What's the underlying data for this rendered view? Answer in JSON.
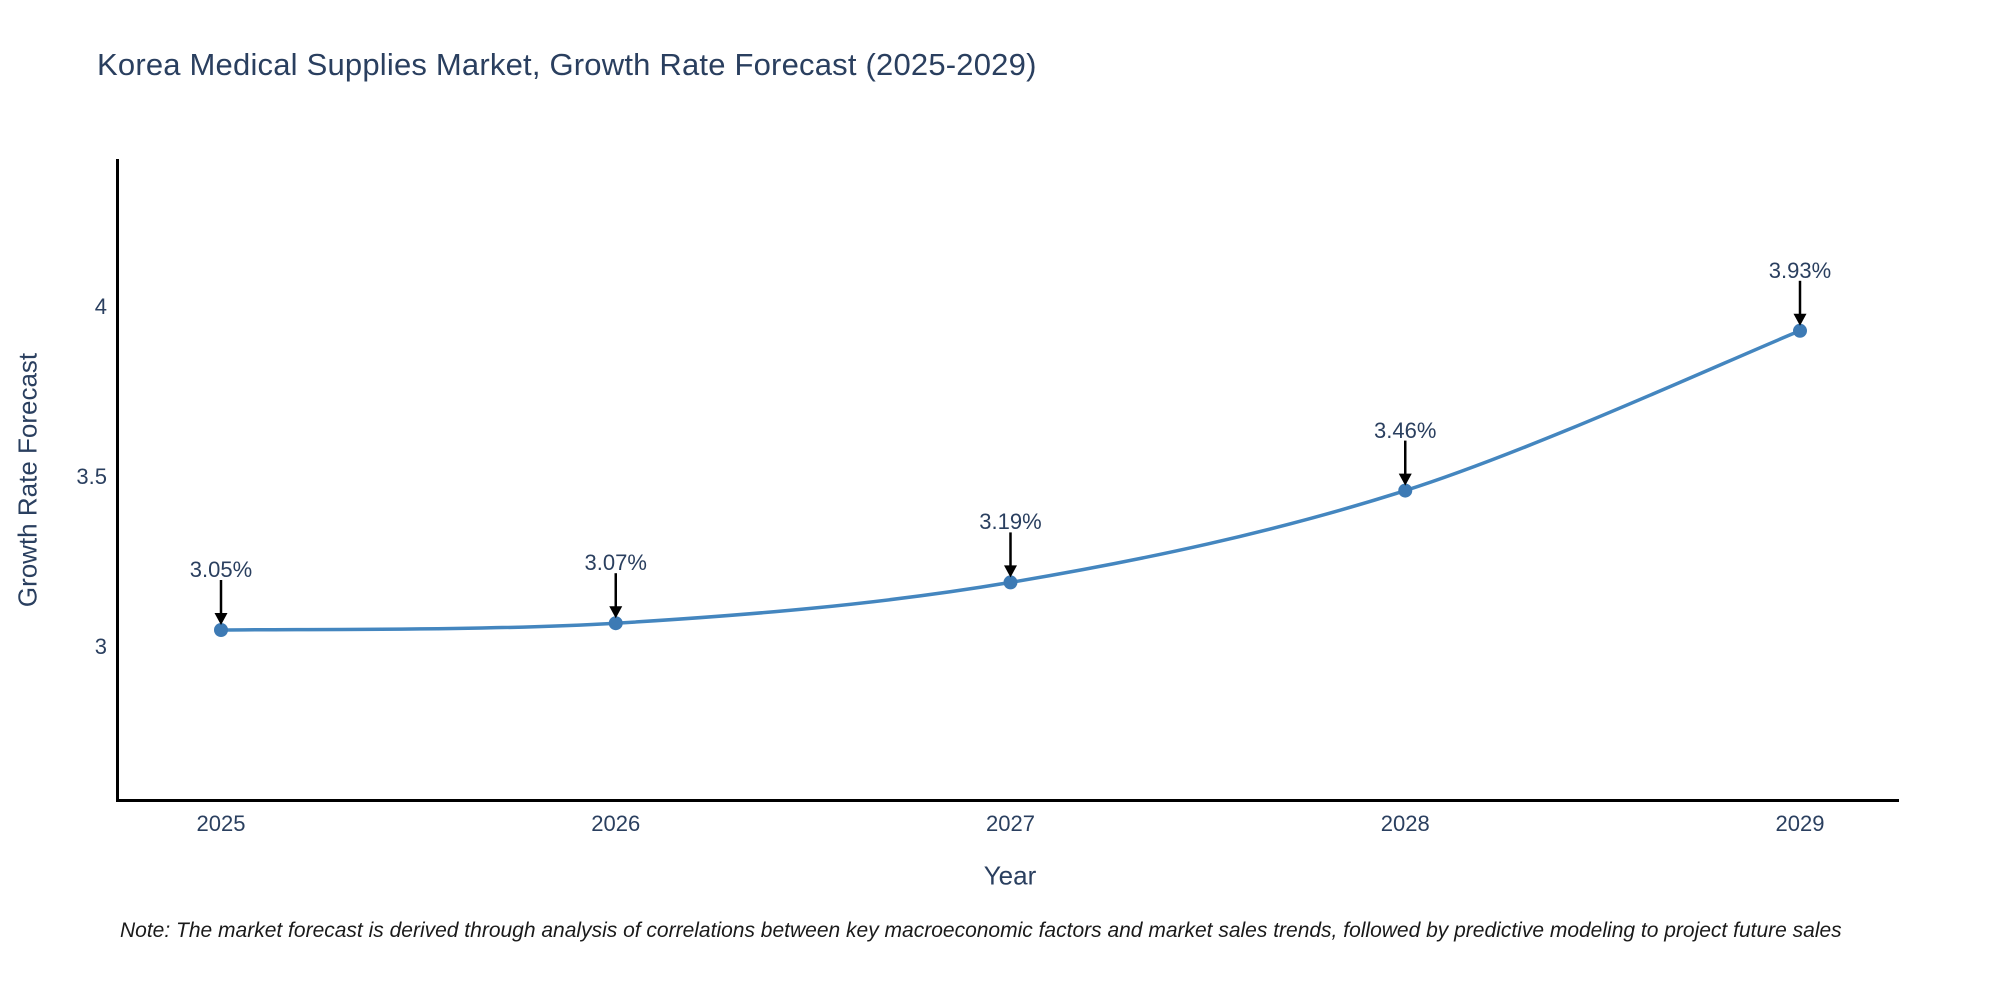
{
  "note": {
    "text": "Note: The market forecast is derived through analysis of correlations between key macroeconomic factors and market sales trends, followed by predictive modeling to project future sales"
  },
  "colors": {
    "title_text": "#2a3f5f",
    "tick_text": "#2a3f5f",
    "axis_line": "#000000",
    "line": "#4486bf",
    "marker": "#3d7ab4",
    "annotation_arrow": "#000000",
    "background": "#ffffff"
  },
  "chart_data": {
    "type": "line",
    "title": "Korea Medical Supplies Market, Growth Rate Forecast (2025-2029)",
    "x": [
      2025,
      2026,
      2027,
      2028,
      2029
    ],
    "y": [
      3.05,
      3.07,
      3.19,
      3.46,
      3.93
    ],
    "labels": [
      "3.05%",
      "3.07%",
      "3.19%",
      "3.46%",
      "3.93%"
    ],
    "xlabel": "Year",
    "ylabel": "Growth Rate Forecast",
    "xticks": [
      "2025",
      "2026",
      "2027",
      "2028",
      "2029"
    ],
    "yticks": [
      3,
      3.5,
      4
    ],
    "ytick_labels": [
      "3",
      "3.5",
      "4"
    ],
    "ylim": [
      2.54,
      4.44
    ],
    "grid": false,
    "legend_position": "none",
    "line_shape": "spline",
    "units": "percent"
  }
}
